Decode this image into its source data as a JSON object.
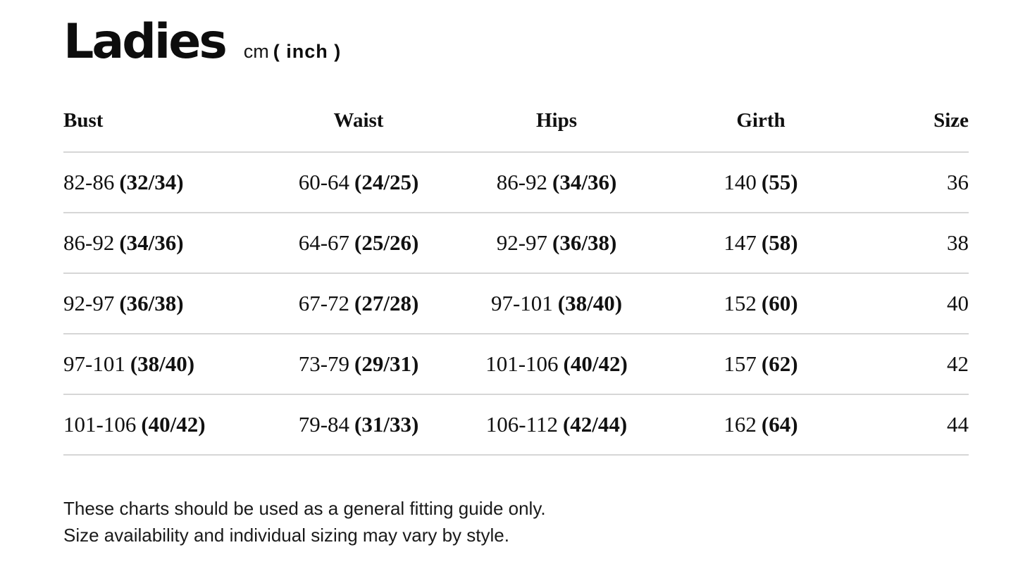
{
  "title": {
    "text": "Ladies",
    "unit_regular": "cm",
    "unit_bold": "( inch )"
  },
  "colors": {
    "divider": "#d6d6d6",
    "text": "#131313"
  },
  "table": {
    "headers": [
      "Bust",
      "Waist",
      "Hips",
      "Girth",
      "Size"
    ],
    "rows": [
      {
        "bust": {
          "cm": "82-86",
          "inch": "(32/34)"
        },
        "waist": {
          "cm": "60-64",
          "inch": "(24/25)"
        },
        "hips": {
          "cm": "86-92",
          "inch": "(34/36)"
        },
        "girth": {
          "cm": "140",
          "inch": "(55)"
        },
        "size": "36"
      },
      {
        "bust": {
          "cm": "86-92",
          "inch": "(34/36)"
        },
        "waist": {
          "cm": "64-67",
          "inch": "(25/26)"
        },
        "hips": {
          "cm": "92-97",
          "inch": "(36/38)"
        },
        "girth": {
          "cm": "147",
          "inch": "(58)"
        },
        "size": "38"
      },
      {
        "bust": {
          "cm": "92-97",
          "inch": "(36/38)"
        },
        "waist": {
          "cm": "67-72",
          "inch": "(27/28)"
        },
        "hips": {
          "cm": "97-101",
          "inch": "(38/40)"
        },
        "girth": {
          "cm": "152",
          "inch": "(60)"
        },
        "size": "40"
      },
      {
        "bust": {
          "cm": "97-101",
          "inch": "(38/40)"
        },
        "waist": {
          "cm": "73-79",
          "inch": "(29/31)"
        },
        "hips": {
          "cm": "101-106",
          "inch": "(40/42)"
        },
        "girth": {
          "cm": "157",
          "inch": "(62)"
        },
        "size": "42"
      },
      {
        "bust": {
          "cm": "101-106",
          "inch": "(40/42)"
        },
        "waist": {
          "cm": "79-84",
          "inch": "(31/33)"
        },
        "hips": {
          "cm": "106-112",
          "inch": "(42/44)"
        },
        "girth": {
          "cm": "162",
          "inch": "(64)"
        },
        "size": "44"
      }
    ]
  },
  "footer": {
    "line1": "These charts should be used as a general fitting guide only.",
    "line2": "Size availability and individual sizing may vary by style."
  }
}
